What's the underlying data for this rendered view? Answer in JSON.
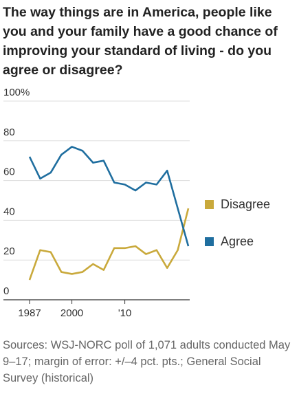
{
  "chart_data": {
    "type": "line",
    "title": "The way things are in America, people like you and your family have a good chance of improving your standard of living - do you agree or disagree?",
    "source": "Sources: WSJ-NORC poll of 1,071 adults conducted May 9–17; margin of error: +/–4 pct. pts.; General Social Survey (historical)",
    "categories": [
      "1987",
      null,
      null,
      null,
      "2000",
      null,
      null,
      null,
      null,
      "'10",
      null,
      null,
      null,
      null,
      null,
      null
    ],
    "series": [
      {
        "name": "Disagree",
        "color": "#c9a93b",
        "values": [
          10,
          25,
          24,
          14,
          13,
          14,
          18,
          15,
          26,
          26,
          27,
          23,
          25,
          16,
          25,
          46
        ]
      },
      {
        "name": "Agree",
        "color": "#1f6e9f",
        "values": [
          72,
          61,
          64,
          73,
          77,
          75,
          69,
          70,
          59,
          58,
          55,
          59,
          58,
          65,
          46,
          27
        ]
      }
    ],
    "ylim": [
      0,
      100
    ],
    "yticks": [
      0,
      20,
      40,
      60,
      80,
      {
        "value": 100,
        "label": "100%"
      }
    ],
    "grid": true
  }
}
